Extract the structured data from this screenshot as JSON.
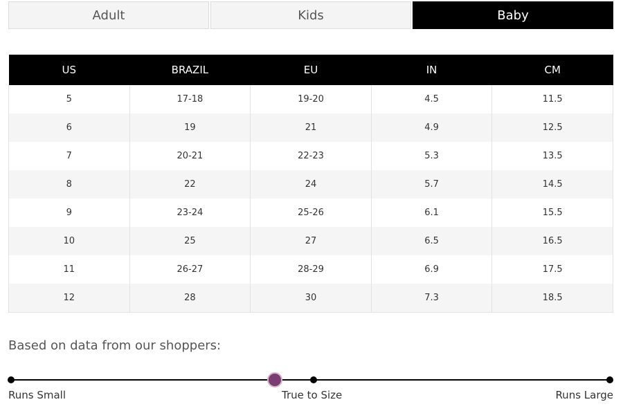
{
  "tabs": [
    {
      "label": "Adult",
      "active": false
    },
    {
      "label": "Kids",
      "active": false
    },
    {
      "label": "Baby",
      "active": true
    }
  ],
  "size_table": {
    "headers": [
      "US",
      "BRAZIL",
      "EU",
      "IN",
      "CM"
    ],
    "rows": [
      [
        "5",
        "17-18",
        "19-20",
        "4.5",
        "11.5"
      ],
      [
        "6",
        "19",
        "21",
        "4.9",
        "12.5"
      ],
      [
        "7",
        "20-21",
        "22-23",
        "5.3",
        "13.5"
      ],
      [
        "8",
        "22",
        "24",
        "5.7",
        "14.5"
      ],
      [
        "9",
        "23-24",
        "25-26",
        "6.1",
        "15.5"
      ],
      [
        "10",
        "25",
        "27",
        "6.5",
        "16.5"
      ],
      [
        "11",
        "26-27",
        "28-29",
        "6.9",
        "17.5"
      ],
      [
        "12",
        "28",
        "30",
        "7.3",
        "18.5"
      ]
    ]
  },
  "fit": {
    "note": "Based on data from our shoppers:",
    "labels": {
      "small": "Runs Small",
      "true": "True to Size",
      "large": "Runs Large"
    },
    "marker_position": 0.44,
    "marker_color": "#7b3c72"
  }
}
